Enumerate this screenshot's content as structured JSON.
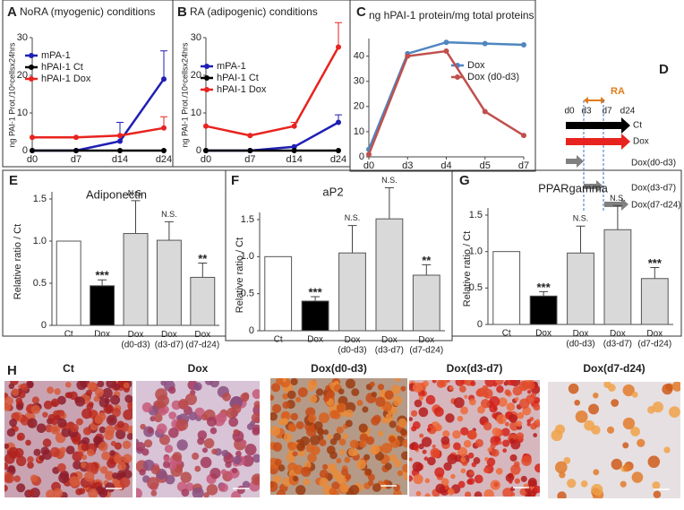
{
  "chart_data": [
    {
      "type": "line",
      "label": "A",
      "title": "NoRA (myogenic) conditions",
      "y_label": "ng PAI-1 Prot./10⁶cellsx24hrs",
      "categories": [
        "d0",
        "d7",
        "d14",
        "d24"
      ],
      "ylim": [
        0,
        30
      ],
      "yticks": [
        0,
        10,
        20,
        30
      ],
      "series": [
        {
          "name": "mPA-1",
          "color": "#1f1fb4",
          "values": [
            0,
            0,
            2.5,
            19
          ],
          "errors": [
            0,
            0,
            5,
            7.5
          ]
        },
        {
          "name": "hPAI-1 Ct",
          "color": "#000000",
          "values": [
            0,
            0,
            0,
            0
          ]
        },
        {
          "name": "hPAI-1 Dox",
          "color": "#e8231f",
          "values": [
            3.5,
            3.5,
            4,
            6
          ],
          "errors": [
            0,
            0,
            0,
            3
          ]
        }
      ]
    },
    {
      "type": "line",
      "label": "B",
      "title": "RA (adipogenic) conditions",
      "y_label": "ng PAI-1 Prot./10⁶cellsx24hrs",
      "categories": [
        "d0",
        "d7",
        "d14",
        "d24"
      ],
      "ylim": [
        0,
        30
      ],
      "yticks": [
        0,
        10,
        20,
        30
      ],
      "series": [
        {
          "name": "mPA-1",
          "color": "#1f1fb4",
          "values": [
            0,
            0,
            1,
            7.5
          ],
          "errors": [
            0,
            0,
            0,
            2
          ]
        },
        {
          "name": "hPAI-1 Ct",
          "color": "#000000",
          "values": [
            0,
            0,
            0,
            0
          ]
        },
        {
          "name": "hPAI-1 Dox",
          "color": "#e8231f",
          "values": [
            6.5,
            4,
            6.5,
            27.5
          ],
          "errors": [
            0,
            0,
            1,
            6.5
          ]
        }
      ]
    },
    {
      "type": "line",
      "label": "C",
      "title": "ng hPAI-1 protein/mg total proteins",
      "categories": [
        "d0",
        "d3",
        "d4",
        "d5",
        "d7"
      ],
      "ylim": [
        0,
        47
      ],
      "yticks": [
        0,
        10,
        20,
        30,
        40
      ],
      "series": [
        {
          "name": "Dox",
          "color": "#4f86c0",
          "values": [
            3,
            41,
            45.5,
            45,
            44.5
          ]
        },
        {
          "name": "Dox (d0-d3)",
          "color": "#c0504d",
          "values": [
            1,
            40,
            42,
            18,
            8.5
          ]
        }
      ]
    },
    {
      "type": "bar",
      "label": "E",
      "title": "Adiponectin",
      "y_label": "Relative ratio / Ct",
      "categories": [
        "Ct",
        "Dox",
        "Dox\n(d0-d3)",
        "Dox\n(d3-d7)",
        "Dox\n(d7-d24)"
      ],
      "values": [
        1,
        0.47,
        1.09,
        1.01,
        0.57
      ],
      "errors": [
        0,
        0.07,
        0.39,
        0.22,
        0.17
      ],
      "colors": [
        "#ffffff",
        "#000000",
        "#d9d9d9",
        "#d9d9d9",
        "#d9d9d9"
      ],
      "annotations": [
        null,
        "***",
        "N.S.",
        "N.S.",
        "**"
      ],
      "ylim": [
        0,
        1.5
      ],
      "yticks": [
        0,
        0.5,
        {
          "value": 1,
          "label": "1.0"
        },
        1.5
      ]
    },
    {
      "type": "bar",
      "label": "F",
      "title": "aP2",
      "y_label": "Relative ratio / Ct",
      "categories": [
        "Ct",
        "Dox",
        "Dox\n(d0-d3)",
        "Dox\n(d3-d7)",
        "Dox\n(d7-d24)"
      ],
      "values": [
        1,
        0.4,
        1.05,
        1.51,
        0.75
      ],
      "errors": [
        0,
        0.06,
        0.37,
        0.42,
        0.14
      ],
      "colors": [
        "#ffffff",
        "#000000",
        "#d9d9d9",
        "#d9d9d9",
        "#d9d9d9"
      ],
      "annotations": [
        null,
        "***",
        "N.S.",
        "N.S.",
        "**"
      ],
      "ylim": [
        0,
        1.5
      ],
      "yticks": [
        0,
        0.5,
        {
          "value": 1,
          "label": "1.0"
        },
        1.5
      ]
    },
    {
      "type": "bar",
      "label": "G",
      "title": "PPARgamma",
      "y_label": "Relative ratio / Ct",
      "categories": [
        "Ct",
        "Dox",
        "Dox\n(d0-d3)",
        "Dox\n(d3-d7)",
        "Dox\n(d7-d24)"
      ],
      "values": [
        1,
        0.39,
        0.98,
        1.3,
        0.63
      ],
      "errors": [
        0,
        0.06,
        0.37,
        0.33,
        0.15
      ],
      "colors": [
        "#ffffff",
        "#000000",
        "#d9d9d9",
        "#d9d9d9",
        "#d9d9d9"
      ],
      "annotations": [
        null,
        "***",
        "N.S.",
        "N.S.",
        "***"
      ],
      "ylim": [
        0,
        1.5
      ],
      "yticks": [
        0,
        0.5,
        {
          "value": 1,
          "label": "1.0"
        },
        1.5
      ]
    }
  ],
  "diagram": {
    "label": "D",
    "bracket": "RA",
    "ticks": [
      "d0",
      "d3",
      "d7",
      "d24"
    ],
    "rows": [
      "Ct",
      "Dox",
      "Dox(d0-d3)",
      "Dox(d3-d7)",
      "Dox(d7-d24)"
    ]
  },
  "images": {
    "label": "H",
    "captions": [
      "Ct",
      "Dox",
      "Dox(d0-d3)",
      "Dox(d3-d7)",
      "Dox(d7-d24)"
    ]
  }
}
